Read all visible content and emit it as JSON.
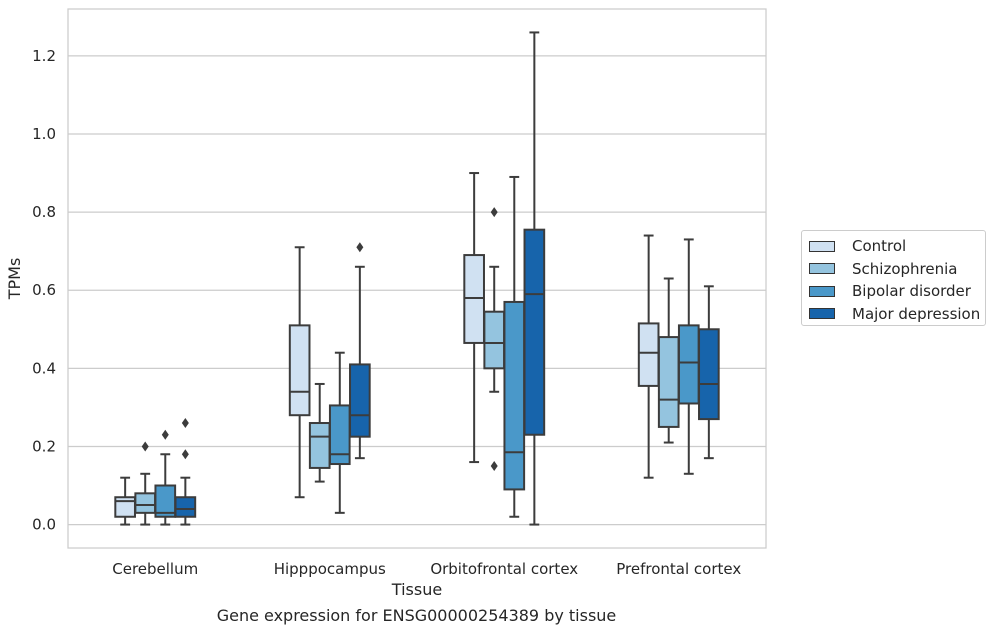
{
  "chart_data": {
    "type": "box",
    "title": "",
    "xlabel": "Tissue",
    "ylabel": "TPMs",
    "ylim": [
      -0.06,
      1.32
    ],
    "yticks": [
      "0.0",
      "0.2",
      "0.4",
      "0.6",
      "0.8",
      "1.0",
      "1.2"
    ],
    "categories": [
      "Cerebellum",
      "Hipppocampus",
      "Orbitofrontal cortex",
      "Prefrontal cortex"
    ],
    "grid": "y",
    "legend_position": "right",
    "series": [
      {
        "name": "Control",
        "color": "#d0e1f2",
        "boxes": [
          {
            "whisker_low": 0.0,
            "q1": 0.02,
            "median": 0.06,
            "q3": 0.07,
            "whisker_high": 0.12,
            "outliers": []
          },
          {
            "whisker_low": 0.07,
            "q1": 0.28,
            "median": 0.34,
            "q3": 0.51,
            "whisker_high": 0.71,
            "outliers": []
          },
          {
            "whisker_low": 0.16,
            "q1": 0.465,
            "median": 0.58,
            "q3": 0.69,
            "whisker_high": 0.9,
            "outliers": []
          },
          {
            "whisker_low": 0.12,
            "q1": 0.355,
            "median": 0.44,
            "q3": 0.515,
            "whisker_high": 0.74,
            "outliers": []
          }
        ]
      },
      {
        "name": "Schizophrenia",
        "color": "#94c4df",
        "boxes": [
          {
            "whisker_low": 0.0,
            "q1": 0.03,
            "median": 0.05,
            "q3": 0.08,
            "whisker_high": 0.13,
            "outliers": [
              0.2
            ]
          },
          {
            "whisker_low": 0.11,
            "q1": 0.145,
            "median": 0.225,
            "q3": 0.26,
            "whisker_high": 0.36,
            "outliers": []
          },
          {
            "whisker_low": 0.34,
            "q1": 0.4,
            "median": 0.465,
            "q3": 0.545,
            "whisker_high": 0.66,
            "outliers": [
              0.8,
              0.15
            ]
          },
          {
            "whisker_low": 0.21,
            "q1": 0.25,
            "median": 0.32,
            "q3": 0.48,
            "whisker_high": 0.63,
            "outliers": []
          }
        ]
      },
      {
        "name": "Bipolar disorder",
        "color": "#4a98c9",
        "boxes": [
          {
            "whisker_low": 0.0,
            "q1": 0.02,
            "median": 0.03,
            "q3": 0.1,
            "whisker_high": 0.18,
            "outliers": [
              0.23
            ]
          },
          {
            "whisker_low": 0.03,
            "q1": 0.155,
            "median": 0.18,
            "q3": 0.305,
            "whisker_high": 0.44,
            "outliers": []
          },
          {
            "whisker_low": 0.02,
            "q1": 0.09,
            "median": 0.185,
            "q3": 0.57,
            "whisker_high": 0.89,
            "outliers": []
          },
          {
            "whisker_low": 0.13,
            "q1": 0.31,
            "median": 0.415,
            "q3": 0.51,
            "whisker_high": 0.73,
            "outliers": []
          }
        ]
      },
      {
        "name": "Major depression",
        "color": "#1764ab",
        "boxes": [
          {
            "whisker_low": 0.0,
            "q1": 0.02,
            "median": 0.04,
            "q3": 0.07,
            "whisker_high": 0.12,
            "outliers": [
              0.18,
              0.26
            ]
          },
          {
            "whisker_low": 0.17,
            "q1": 0.225,
            "median": 0.28,
            "q3": 0.41,
            "whisker_high": 0.66,
            "outliers": [
              0.71
            ]
          },
          {
            "whisker_low": 0.0,
            "q1": 0.23,
            "median": 0.59,
            "q3": 0.755,
            "whisker_high": 1.26,
            "outliers": []
          },
          {
            "whisker_low": 0.17,
            "q1": 0.27,
            "median": 0.36,
            "q3": 0.5,
            "whisker_high": 0.61,
            "outliers": []
          }
        ]
      }
    ]
  },
  "caption": "Gene expression for ENSG00000254389 by tissue"
}
